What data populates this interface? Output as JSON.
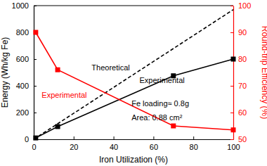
{
  "chart_data": {
    "type": "line",
    "x_label": "Iron Utilization (%)",
    "y_label": "Energy (Wh/kg Fe)",
    "y2_label": "Round-trip Efficiency (%)",
    "y2_color": "#ff0000",
    "xlim": [
      0,
      100
    ],
    "xticks": [
      0,
      20,
      40,
      60,
      80,
      100
    ],
    "ylim": [
      0,
      1000
    ],
    "yticks": [
      0,
      200,
      400,
      600,
      800,
      1000
    ],
    "y2lim": [
      50,
      100
    ],
    "y2ticks": [
      50,
      60,
      70,
      80,
      90,
      100
    ],
    "series": [
      {
        "x": [
          0,
          100
        ],
        "values": [
          0,
          970
        ],
        "color": "#000000",
        "line_style": "dashed",
        "marker": "none"
      },
      {
        "x": [
          1,
          12,
          70,
          100
        ],
        "values": [
          10,
          95,
          475,
          600
        ],
        "color": "#000000",
        "line_style": "solid",
        "marker": "square"
      },
      {
        "x": [
          1,
          12,
          70,
          100
        ],
        "values": [
          90,
          76,
          55,
          53.5
        ],
        "color": "#ff0000",
        "line_style": "solid",
        "marker": "square",
        "axis": "y2"
      }
    ],
    "annotations": [
      {
        "text": "Theoretical",
        "x": 29,
        "y": 515,
        "color": "#000000"
      },
      {
        "text": "Experimental",
        "x": 53,
        "y": 420,
        "color": "#000000"
      },
      {
        "text": "Experimental",
        "x": 4,
        "y": 310,
        "color": "#ff0000"
      },
      {
        "text": "Fe loading≈ 0.8g",
        "x": 49,
        "y": 250,
        "color": "#000000"
      },
      {
        "text": "Area: 0.88 cm²",
        "x": 49,
        "y": 140,
        "color": "#000000"
      }
    ]
  }
}
